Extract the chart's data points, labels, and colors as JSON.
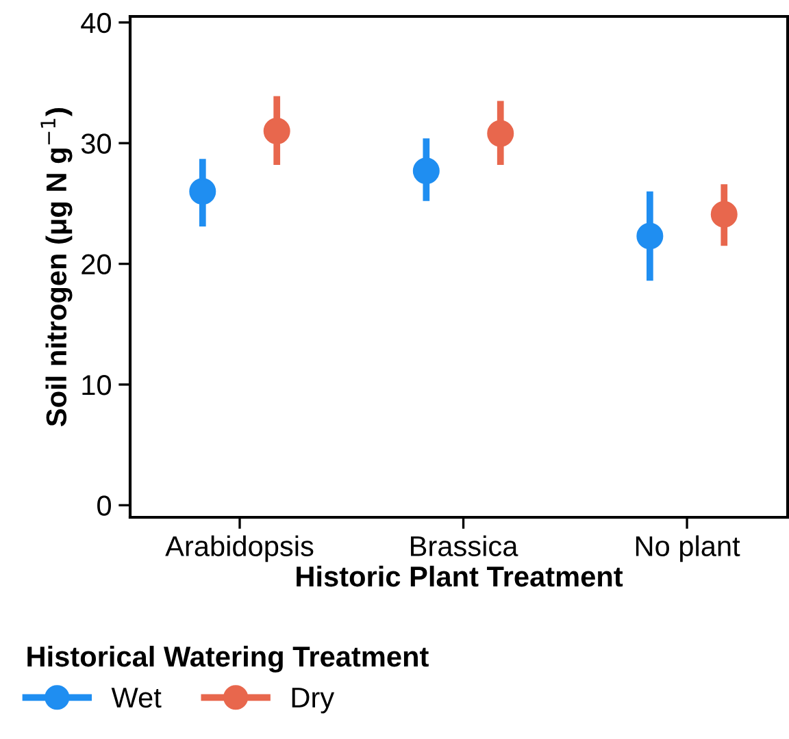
{
  "chart_data": {
    "type": "scatter",
    "xlabel": "Historic Plant Treatment",
    "ylabel": "Soil nitrogen (μg N g$^{−1}$)",
    "legend_title": "Historical Watering Treatment",
    "legend": "bottom left",
    "categories": [
      "Arabidopsis",
      "Brassica",
      "No plant"
    ],
    "series": [
      {
        "name": "Wet",
        "color": "#1f8ef1",
        "values": [
          26.0,
          27.7,
          22.3
        ],
        "errors": [
          [
            23.1,
            28.7
          ],
          [
            25.2,
            30.4
          ],
          [
            18.6,
            26.0
          ]
        ]
      },
      {
        "name": "Dry",
        "color": "#e8674d",
        "values": [
          31.0,
          30.8,
          24.1
        ],
        "errors": [
          [
            28.2,
            33.9
          ],
          [
            28.2,
            33.5
          ],
          [
            21.5,
            26.6
          ]
        ]
      }
    ],
    "ylim": [
      -1,
      40.5
    ],
    "yticks": [
      0,
      10,
      20,
      30,
      40
    ],
    "grid": false,
    "marker": "circle"
  }
}
